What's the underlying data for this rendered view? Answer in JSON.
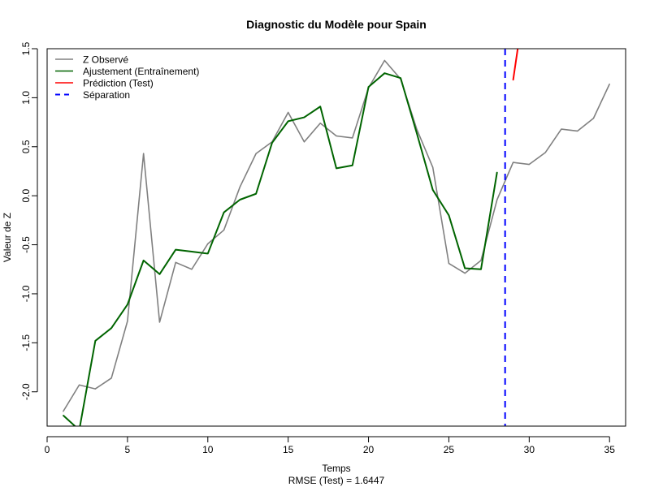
{
  "chart_data": {
    "type": "line",
    "title": "Diagnostic du Modèle pour Spain",
    "xlabel": "Temps",
    "ylabel": "Valeur de Z",
    "subtitle": "RMSE (Test) = 1.6447",
    "xlim": [
      0,
      36
    ],
    "ylim": [
      -2.35,
      1.5
    ],
    "x_ticks": [
      0,
      5,
      10,
      15,
      20,
      25,
      30,
      35
    ],
    "y_ticks": [
      -2.0,
      -1.5,
      -1.0,
      -0.5,
      0.0,
      0.5,
      1.0,
      1.5
    ],
    "x_tick_labels": [
      "0",
      "5",
      "10",
      "15",
      "20",
      "25",
      "30",
      "35"
    ],
    "y_tick_labels": [
      "-2.0",
      "-1.5",
      "-1.0",
      "-0.5",
      "0.0",
      "0.5",
      "1.0",
      "1.5"
    ],
    "legend_position": "top-left",
    "grid": false,
    "series": [
      {
        "name": "Z Observé",
        "color": "#808080",
        "style": "solid",
        "points": [
          [
            1,
            -2.2
          ],
          [
            2,
            -1.93
          ],
          [
            3,
            -1.97
          ],
          [
            4,
            -1.86
          ],
          [
            5,
            -1.28
          ],
          [
            6,
            0.43
          ],
          [
            7,
            -1.29
          ],
          [
            8,
            -0.68
          ],
          [
            9,
            -0.75
          ],
          [
            10,
            -0.49
          ],
          [
            11,
            -0.35
          ],
          [
            12,
            0.09
          ],
          [
            13,
            0.43
          ],
          [
            14,
            0.55
          ],
          [
            15,
            0.85
          ],
          [
            16,
            0.55
          ],
          [
            17,
            0.74
          ],
          [
            18,
            0.61
          ],
          [
            19,
            0.59
          ],
          [
            20,
            1.1
          ],
          [
            21,
            1.38
          ],
          [
            22,
            1.19
          ],
          [
            23,
            0.68
          ],
          [
            24,
            0.29
          ],
          [
            25,
            -0.69
          ],
          [
            26,
            -0.79
          ],
          [
            27,
            -0.66
          ],
          [
            28,
            -0.04
          ],
          [
            29,
            0.34
          ],
          [
            30,
            0.32
          ],
          [
            31,
            0.44
          ],
          [
            32,
            0.68
          ],
          [
            33,
            0.66
          ],
          [
            34,
            0.79
          ],
          [
            35,
            1.14
          ]
        ]
      },
      {
        "name": "Ajustement (Entraînement)",
        "color": "#006400",
        "style": "solid",
        "points": [
          [
            1,
            -2.24
          ],
          [
            2,
            -2.39
          ],
          [
            3,
            -1.48
          ],
          [
            4,
            -1.35
          ],
          [
            5,
            -1.11
          ],
          [
            6,
            -0.66
          ],
          [
            7,
            -0.8
          ],
          [
            8,
            -0.55
          ],
          [
            9,
            -0.57
          ],
          [
            10,
            -0.59
          ],
          [
            11,
            -0.17
          ],
          [
            12,
            -0.04
          ],
          [
            13,
            0.02
          ],
          [
            14,
            0.54
          ],
          [
            15,
            0.76
          ],
          [
            16,
            0.8
          ],
          [
            17,
            0.91
          ],
          [
            18,
            0.28
          ],
          [
            19,
            0.31
          ],
          [
            20,
            1.11
          ],
          [
            21,
            1.25
          ],
          [
            22,
            1.2
          ],
          [
            23,
            0.64
          ],
          [
            24,
            0.06
          ],
          [
            25,
            -0.2
          ],
          [
            26,
            -0.74
          ],
          [
            27,
            -0.75
          ],
          [
            28,
            0.24
          ]
        ]
      },
      {
        "name": "Prédiction (Test)",
        "color": "#ff0000",
        "style": "solid",
        "points": [
          [
            29,
            1.18
          ],
          [
            30,
            2.3
          ]
        ]
      },
      {
        "name": "Séparation",
        "color": "#0000ff",
        "style": "dashed",
        "vline": 28.5
      }
    ]
  }
}
